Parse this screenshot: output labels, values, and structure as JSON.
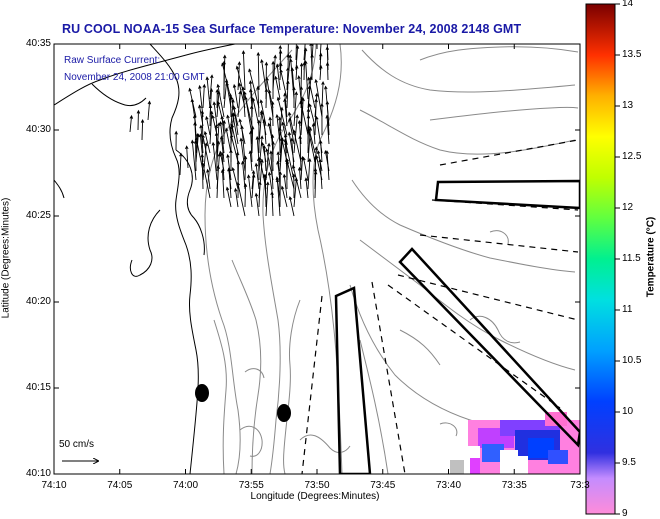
{
  "title": "RU COOL  NOAA-15  Sea Surface Temperature:  November 24, 2008 2148 GMT",
  "annotation": {
    "line1": "Raw Surface Current:",
    "line2": "November 24, 2008 21:00 GMT"
  },
  "scale_bar": {
    "label": "50 cm/s"
  },
  "axes": {
    "xlabel": "Longitude (Degrees:Minutes)",
    "ylabel": "Latitude (Degrees:Minutes)",
    "xticks": [
      "74:10",
      "74:05",
      "74:00",
      "73:55",
      "73:50",
      "73:45",
      "73:40",
      "73:35",
      "73:3"
    ],
    "yticks": [
      "40:35",
      "40:30",
      "40:25",
      "40:20",
      "40:15",
      "40:10"
    ]
  },
  "colorbar": {
    "label": "Temperature (°C)",
    "ticks": [
      "14",
      "13.5",
      "13",
      "12.5",
      "12",
      "11.5",
      "11",
      "10.5",
      "10",
      "9.5",
      "9"
    ],
    "range": [
      9,
      14
    ]
  },
  "colors": {
    "title": "#1a1aa6",
    "coast": "#000000",
    "bathymetry": "#8a8a8a"
  }
}
